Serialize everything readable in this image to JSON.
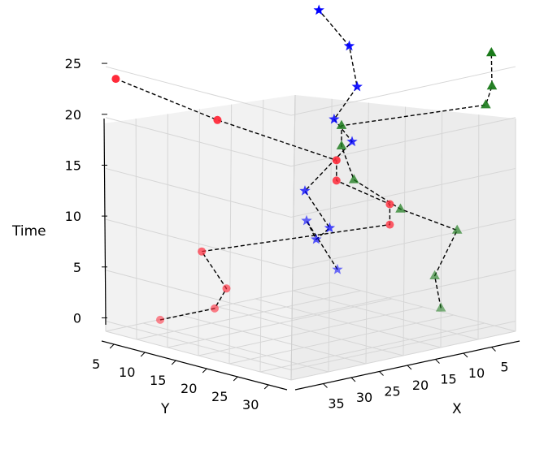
{
  "chart_data": {
    "type": "scatter",
    "projection": "3d",
    "zlabel": "Time",
    "ylabel": "Y",
    "xlabel": "X",
    "z_ticks": [
      0,
      5,
      10,
      15,
      20,
      25
    ],
    "y_ticks": [
      5,
      10,
      15,
      20,
      25,
      30
    ],
    "x_ticks": [
      35,
      30,
      25,
      20,
      15,
      10,
      5
    ],
    "grid": true,
    "connection_style": "dashed-black",
    "series": [
      {
        "marker": "star",
        "color": "#0000ff",
        "points": [
          {
            "x": 2,
            "y": 6,
            "t": 1
          },
          {
            "x": 2,
            "y": 1,
            "t": 5
          },
          {
            "x": 8,
            "y": 8,
            "t": 5
          },
          {
            "x": 10,
            "y": 12,
            "t": 7
          },
          {
            "x": 10,
            "y": 8,
            "t": 10
          },
          {
            "x": 6,
            "y": 12,
            "t": 15
          },
          {
            "x": 7,
            "y": 10,
            "t": 17
          },
          {
            "x": 4,
            "y": 11,
            "t": 20
          },
          {
            "x": 1,
            "y": 7,
            "t": 23
          },
          {
            "x": 2,
            "y": 3,
            "t": 26
          }
        ]
      },
      {
        "marker": "circle",
        "color": "#ff2a3a",
        "points": [
          {
            "x": 38,
            "y": 10,
            "t": 1
          },
          {
            "x": 36,
            "y": 17,
            "t": 3
          },
          {
            "x": 35,
            "y": 18,
            "t": 5
          },
          {
            "x": 35,
            "y": 14,
            "t": 8
          },
          {
            "x": 18,
            "y": 29,
            "t": 11
          },
          {
            "x": 18,
            "y": 29,
            "t": 13
          },
          {
            "x": 22,
            "y": 24,
            "t": 15
          },
          {
            "x": 22,
            "y": 24,
            "t": 17
          },
          {
            "x": 30,
            "y": 12,
            "t": 20
          },
          {
            "x": 36,
            "y": 1,
            "t": 23
          }
        ]
      },
      {
        "marker": "triangle",
        "color": "#1a7a1a",
        "points": [
          {
            "x": 10,
            "y": 30,
            "t": 2
          },
          {
            "x": 10,
            "y": 29,
            "t": 5
          },
          {
            "x": 6,
            "y": 29,
            "t": 9
          },
          {
            "x": 15,
            "y": 28,
            "t": 12
          },
          {
            "x": 20,
            "y": 25,
            "t": 15
          },
          {
            "x": 20,
            "y": 23,
            "t": 18
          },
          {
            "x": 20,
            "y": 23,
            "t": 20
          },
          {
            "x": 2,
            "y": 30,
            "t": 21
          },
          {
            "x": 2,
            "y": 31,
            "t": 23
          },
          {
            "x": 1,
            "y": 30,
            "t": 26
          }
        ]
      }
    ]
  }
}
